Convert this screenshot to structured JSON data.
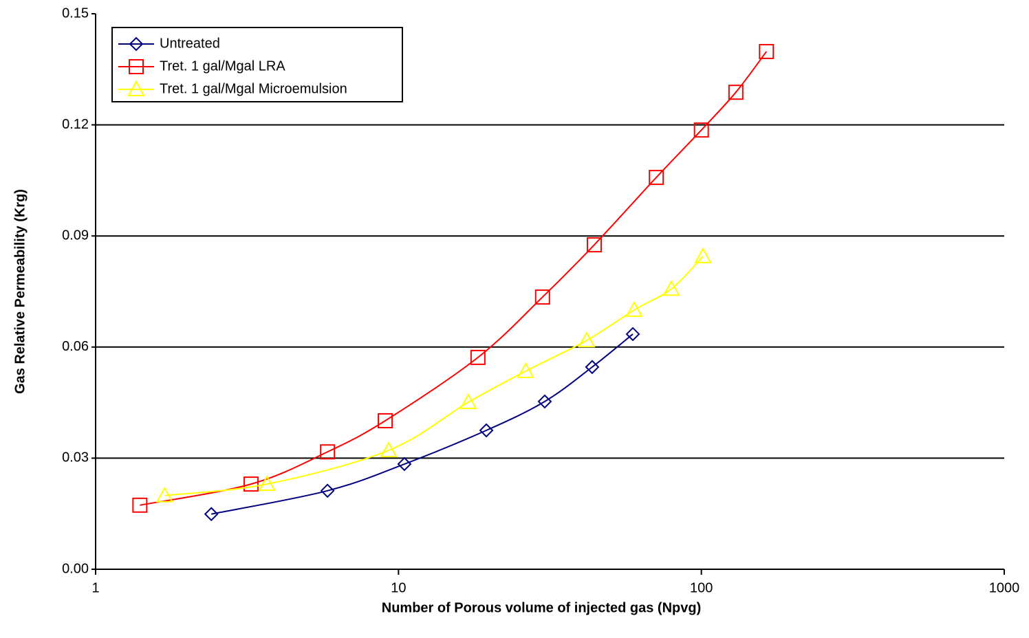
{
  "chart_data": {
    "type": "line",
    "x_label": "Number of Porous volume of injected gas (Npvg)",
    "y_label": "Gas Relative Permeability (Krg)",
    "xlog": true,
    "xlim": [
      1,
      1000
    ],
    "xticks": [
      1,
      10,
      100,
      1000
    ],
    "ylim": [
      0,
      0.15
    ],
    "yticks": [
      {
        "value": 0,
        "label": "0.00"
      },
      0.03,
      0.06,
      0.09,
      0.12,
      0.15
    ],
    "grid": true,
    "legend": "upper left",
    "series": [
      {
        "name": "Untreated",
        "color": "#000080",
        "marker": "diamond",
        "x": [
          2.41,
          5.83,
          10.46,
          19.5,
          30.4,
          43.6,
          59.4
        ],
        "values": [
          0.0149,
          0.0212,
          0.0284,
          0.0375,
          0.0453,
          0.0546,
          0.0635
        ]
      },
      {
        "name": "Tret. 1 gal/Mgal LRA",
        "color": "#ff0000",
        "marker": "square",
        "x": [
          1.4,
          3.26,
          5.83,
          9.04,
          18.3,
          29.9,
          44.3,
          71.0,
          100,
          130,
          164
        ],
        "values": [
          0.0173,
          0.023,
          0.0317,
          0.0401,
          0.0572,
          0.0735,
          0.0876,
          0.1058,
          0.1186,
          0.1288,
          0.1398
        ]
      },
      {
        "name": "Tret. 1 gal/Mgal Microemulsion",
        "color": "#ffff00",
        "marker": "triangle",
        "x": [
          1.69,
          3.68,
          9.28,
          17.0,
          26.3,
          41.8,
          60.0,
          79.6,
          101.2
        ],
        "values": [
          0.0199,
          0.023,
          0.0321,
          0.0451,
          0.0535,
          0.0618,
          0.07,
          0.0757,
          0.0845
        ]
      }
    ]
  }
}
